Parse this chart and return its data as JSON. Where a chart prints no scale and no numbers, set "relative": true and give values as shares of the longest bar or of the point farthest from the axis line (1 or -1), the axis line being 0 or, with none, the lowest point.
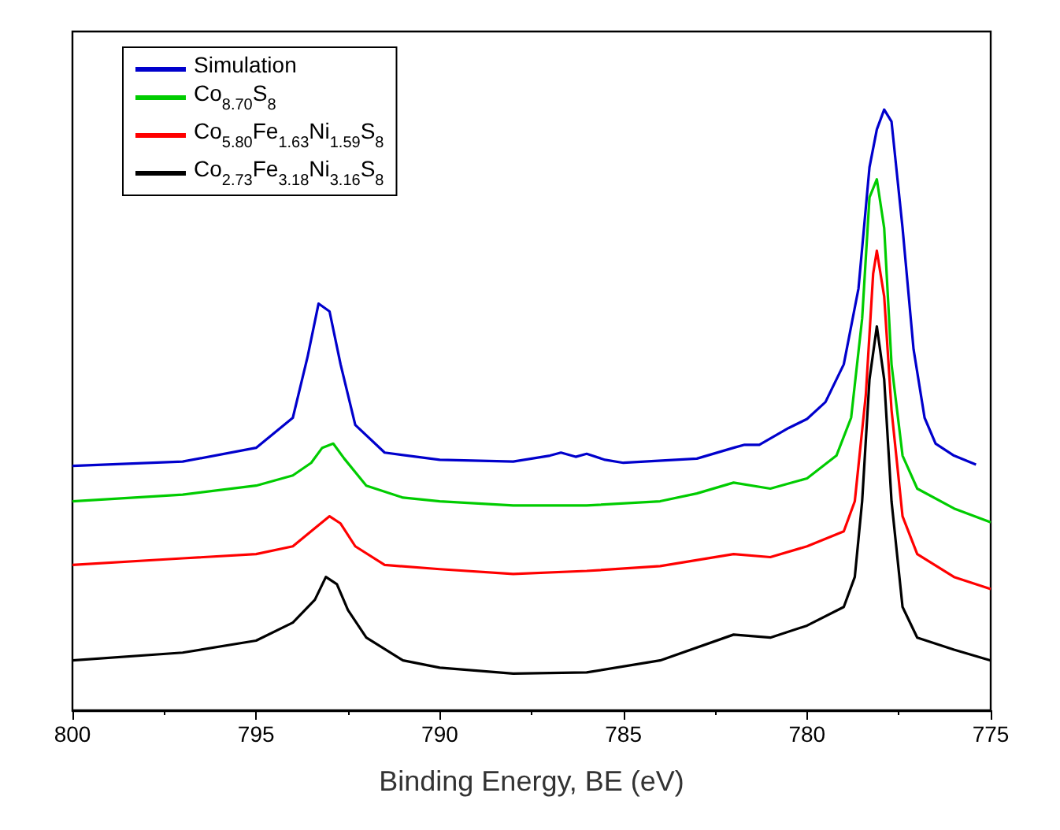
{
  "chart_data": {
    "type": "line",
    "relative": true,
    "xlabel": "Binding Energy, BE (eV)",
    "xlim": [
      800,
      775
    ],
    "xticks": [
      800,
      795,
      790,
      785,
      780,
      775
    ],
    "grid": false,
    "legend": "top left",
    "marker": "none",
    "line_style": "solid",
    "series": [
      {
        "name": "Simulation",
        "color": "#0000cc",
        "x": [
          800,
          797,
          795,
          794,
          793.6,
          793.3,
          793,
          792.7,
          792.3,
          791.5,
          790,
          788,
          787,
          786.7,
          786.3,
          786,
          785.5,
          785,
          783,
          782,
          781.7,
          781.3,
          780.5,
          780,
          779.5,
          779,
          778.6,
          778.3,
          778.1,
          777.9,
          777.7,
          777.4,
          777.1,
          776.8,
          776.5,
          776,
          775.4
        ],
        "values": [
          0.407,
          0.414,
          0.437,
          0.487,
          0.588,
          0.677,
          0.664,
          0.576,
          0.475,
          0.429,
          0.417,
          0.414,
          0.424,
          0.429,
          0.422,
          0.427,
          0.417,
          0.412,
          0.419,
          0.437,
          0.442,
          0.442,
          0.47,
          0.485,
          0.513,
          0.576,
          0.702,
          0.904,
          0.967,
          1,
          0.98,
          0.803,
          0.601,
          0.487,
          0.444,
          0.424,
          0.409
        ]
      },
      {
        "name": "Co$_{8.70}$S$_{8}$",
        "color": "#00cc00",
        "x": [
          800,
          797,
          795,
          794,
          793.5,
          793.2,
          792.9,
          792.6,
          792,
          791,
          790,
          788,
          786,
          784,
          783,
          782,
          781,
          780,
          779.2,
          778.8,
          778.5,
          778.3,
          778.1,
          777.9,
          777.7,
          777.4,
          777,
          776,
          775
        ],
        "values": [
          0.348,
          0.359,
          0.374,
          0.391,
          0.412,
          0.437,
          0.444,
          0.419,
          0.374,
          0.354,
          0.348,
          0.341,
          0.341,
          0.348,
          0.361,
          0.379,
          0.369,
          0.386,
          0.424,
          0.487,
          0.652,
          0.854,
          0.884,
          0.803,
          0.576,
          0.424,
          0.369,
          0.336,
          0.313
        ]
      },
      {
        "name": "Co$_{5.80}$Fe$_{1.63}$Ni$_{1.59}$S$_{8}$",
        "color": "#ff0000",
        "x": [
          800,
          797,
          795,
          794,
          793.4,
          793,
          792.7,
          792.3,
          791.5,
          790,
          788,
          786,
          784,
          782,
          781,
          780,
          779,
          778.7,
          778.4,
          778.2,
          778.1,
          777.9,
          777.7,
          777.4,
          777,
          776,
          775
        ],
        "values": [
          0.242,
          0.253,
          0.26,
          0.273,
          0.303,
          0.323,
          0.311,
          0.273,
          0.242,
          0.235,
          0.227,
          0.232,
          0.24,
          0.26,
          0.255,
          0.273,
          0.298,
          0.348,
          0.525,
          0.727,
          0.765,
          0.689,
          0.5,
          0.323,
          0.26,
          0.222,
          0.202
        ]
      },
      {
        "name": "Co$_{2.73}$Fe$_{3.18}$Ni$_{3.16}$S$_{8}$",
        "color": "#000000",
        "x": [
          800,
          797,
          795,
          794,
          793.4,
          793.1,
          792.8,
          792.5,
          792,
          791,
          790,
          788,
          786,
          784,
          782,
          781,
          780,
          779,
          778.7,
          778.5,
          778.3,
          778.1,
          777.9,
          777.7,
          777.4,
          777,
          776,
          775
        ],
        "values": [
          0.083,
          0.096,
          0.116,
          0.146,
          0.184,
          0.222,
          0.21,
          0.167,
          0.121,
          0.083,
          0.071,
          0.061,
          0.063,
          0.083,
          0.126,
          0.121,
          0.141,
          0.172,
          0.222,
          0.348,
          0.551,
          0.639,
          0.551,
          0.348,
          0.172,
          0.121,
          0.101,
          0.083
        ]
      }
    ]
  }
}
